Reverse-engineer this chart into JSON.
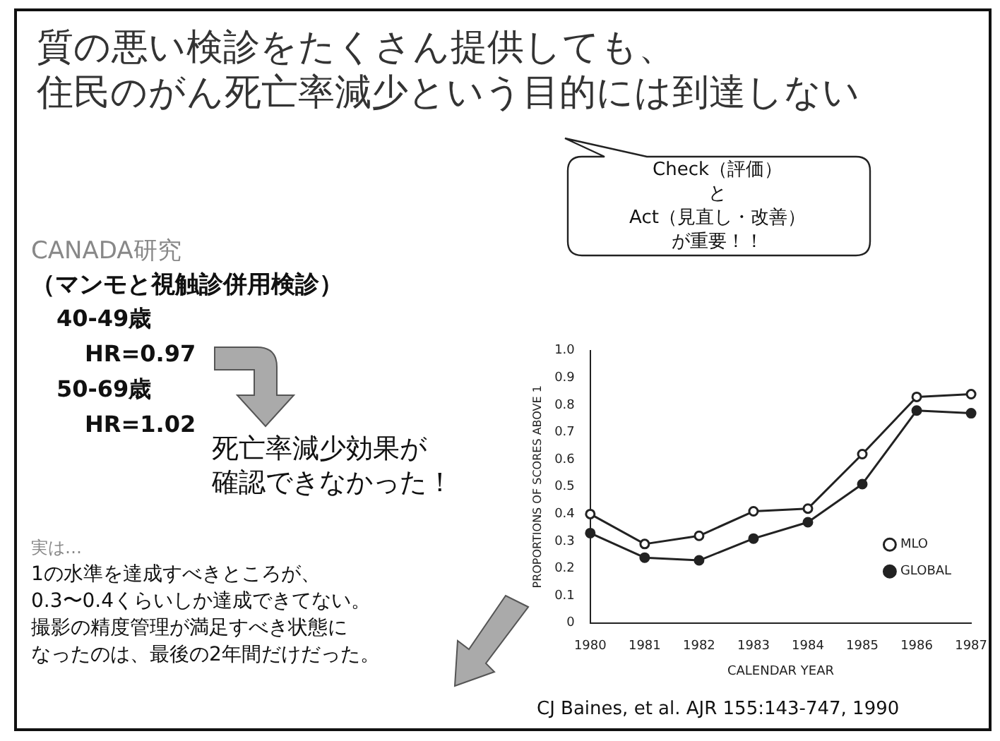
{
  "chart_data": {
    "type": "line",
    "title": "質の悪い検診をたくさん提供しても、",
    "subtitle": "住民のがん死亡率減少という目的には到達しない",
    "xlabel": "CALENDAR YEAR",
    "ylabel": "PROPORTIONS OF SCORES ABOVE 1",
    "categories": [
      "1980",
      "1981",
      "1982",
      "1983",
      "1984",
      "1985",
      "1986",
      "1987"
    ],
    "series": [
      {
        "name": "MLO",
        "color": "#222222",
        "values": [
          0.4,
          0.29,
          0.32,
          0.41,
          0.42,
          0.62,
          0.83,
          0.84
        ]
      },
      {
        "name": "GLOBAL",
        "color": "#222222",
        "values": [
          0.33,
          0.24,
          0.23,
          0.31,
          0.37,
          0.51,
          0.78,
          0.77
        ]
      }
    ],
    "ylim": [
      0,
      1
    ],
    "yticks": [
      {
        "value": 0,
        "label": "0"
      },
      {
        "value": 0.1,
        "label": "0.1"
      },
      {
        "value": 0.2,
        "label": "0.2"
      },
      {
        "value": 0.3,
        "label": "0.3"
      },
      {
        "value": 0.4,
        "label": "0.4"
      },
      {
        "value": 0.5,
        "label": "0.5"
      },
      {
        "value": 0.6,
        "label": "0.6"
      },
      {
        "value": 0.7,
        "label": "0.7"
      },
      {
        "value": 0.8,
        "label": "0.8"
      },
      {
        "value": 0.9,
        "label": "0.9"
      },
      {
        "value": 1,
        "label": "1.0"
      }
    ],
    "grid": false,
    "legend": "bottom right",
    "marker": "circle",
    "line_style": "solid",
    "annotations": [
      "Check（評価）",
      "と",
      "Act（見直し・改善）",
      "が重要！！",
      "CANADA研究",
      "（マンモと視触診併用検診）",
      "40-49歳",
      "HR=0.97",
      "50-69歳",
      "HR=1.02",
      "死亡率減少効果が",
      "確認できなかった！",
      "実は…",
      "1の水準を達成すべきところが、",
      "0.3〜0.4くらいしか達成できてない。",
      "撮影の精度管理が満足すべき状態に",
      "なったのは、最後の2年間だけだった。",
      "CJ Baines, et al.  AJR 155:143-747, 1990"
    ]
  }
}
